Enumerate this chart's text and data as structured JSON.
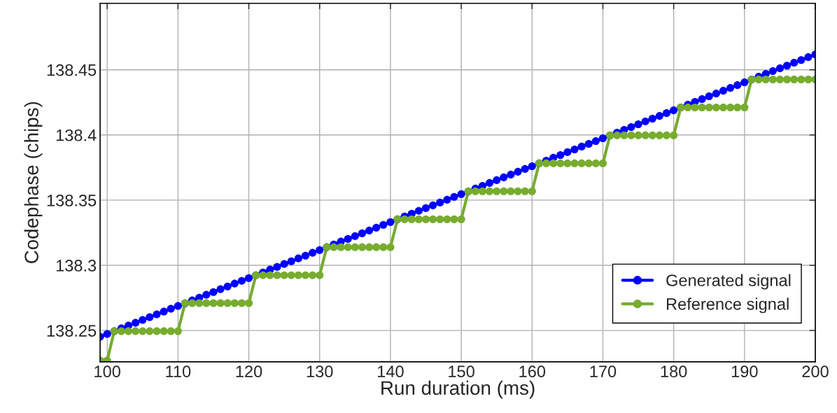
{
  "chart_data": {
    "type": "line",
    "xlabel": "Run duration (ms)",
    "ylabel": "Codephase (chips)",
    "x": [
      99,
      100,
      101,
      102,
      103,
      104,
      105,
      106,
      107,
      108,
      109,
      110,
      111,
      112,
      113,
      114,
      115,
      116,
      117,
      118,
      119,
      120,
      121,
      122,
      123,
      124,
      125,
      126,
      127,
      128,
      129,
      130,
      131,
      132,
      133,
      134,
      135,
      136,
      137,
      138,
      139,
      140,
      141,
      142,
      143,
      144,
      145,
      146,
      147,
      148,
      149,
      150,
      151,
      152,
      153,
      154,
      155,
      156,
      157,
      158,
      159,
      160,
      161,
      162,
      163,
      164,
      165,
      166,
      167,
      168,
      169,
      170,
      171,
      172,
      173,
      174,
      175,
      176,
      177,
      178,
      179,
      180,
      181,
      182,
      183,
      184,
      185,
      186,
      187,
      188,
      189,
      190,
      191,
      192,
      193,
      194,
      195,
      196,
      197,
      198,
      199,
      200
    ],
    "series": [
      {
        "name": "Generated signal",
        "color": "#0000ff",
        "values": [
          138.2452,
          138.2473,
          138.2495,
          138.2516,
          138.2538,
          138.2559,
          138.2581,
          138.2602,
          138.2624,
          138.2645,
          138.2667,
          138.2688,
          138.2709,
          138.2731,
          138.2752,
          138.2774,
          138.2795,
          138.2817,
          138.2838,
          138.286,
          138.2881,
          138.2902,
          138.2924,
          138.2945,
          138.2967,
          138.2988,
          138.301,
          138.3031,
          138.3053,
          138.3074,
          138.3096,
          138.3117,
          138.3139,
          138.316,
          138.3182,
          138.3203,
          138.3224,
          138.3246,
          138.3267,
          138.3289,
          138.331,
          138.3332,
          138.3353,
          138.3375,
          138.3396,
          138.3418,
          138.3439,
          138.346,
          138.3482,
          138.3503,
          138.3525,
          138.3546,
          138.3567,
          138.3589,
          138.361,
          138.3632,
          138.3653,
          138.3675,
          138.3696,
          138.3718,
          138.3739,
          138.376,
          138.3782,
          138.3803,
          138.3825,
          138.3846,
          138.3868,
          138.3889,
          138.3911,
          138.3932,
          138.3953,
          138.3975,
          138.3996,
          138.4018,
          138.4039,
          138.4061,
          138.4082,
          138.4104,
          138.4125,
          138.4146,
          138.4168,
          138.4189,
          138.4211,
          138.4232,
          138.4254,
          138.4275,
          138.4297,
          138.4318,
          138.4339,
          138.4361,
          138.4382,
          138.4404,
          138.4425,
          138.4447,
          138.4468,
          138.449,
          138.4511,
          138.4532,
          138.4554,
          138.4575,
          138.4597,
          138.4618
        ]
      },
      {
        "name": "Reference signal",
        "color": "#77ac30",
        "values": [
          138.227,
          138.227,
          138.2495,
          138.2495,
          138.2495,
          138.2495,
          138.2495,
          138.2495,
          138.2495,
          138.2495,
          138.2495,
          138.2495,
          138.271,
          138.271,
          138.271,
          138.271,
          138.271,
          138.271,
          138.271,
          138.271,
          138.271,
          138.271,
          138.2924,
          138.2924,
          138.2924,
          138.2924,
          138.2924,
          138.2924,
          138.2924,
          138.2924,
          138.2924,
          138.2924,
          138.3139,
          138.3139,
          138.3139,
          138.3139,
          138.3139,
          138.3139,
          138.3139,
          138.3139,
          138.3139,
          138.3139,
          138.3353,
          138.3353,
          138.3353,
          138.3353,
          138.3353,
          138.3353,
          138.3353,
          138.3353,
          138.3353,
          138.3353,
          138.3568,
          138.3568,
          138.3568,
          138.3568,
          138.3568,
          138.3568,
          138.3568,
          138.3568,
          138.3568,
          138.3568,
          138.3782,
          138.3782,
          138.3782,
          138.3782,
          138.3782,
          138.3782,
          138.3782,
          138.3782,
          138.3782,
          138.3782,
          138.3997,
          138.3997,
          138.3997,
          138.3997,
          138.3997,
          138.3997,
          138.3997,
          138.3997,
          138.3997,
          138.3997,
          138.4211,
          138.4211,
          138.4211,
          138.4211,
          138.4211,
          138.4211,
          138.4211,
          138.4211,
          138.4211,
          138.4211,
          138.4426,
          138.4426,
          138.4426,
          138.4426,
          138.4426,
          138.4426,
          138.4426,
          138.4426,
          138.4426,
          138.4426
        ]
      }
    ],
    "xlim": [
      99,
      200
    ],
    "xticks": [
      100,
      110,
      120,
      130,
      140,
      150,
      160,
      170,
      180,
      190,
      200
    ],
    "ylim": [
      138.226,
      138.501
    ],
    "yticks": [
      138.25,
      138.3,
      138.35,
      138.4,
      138.45
    ],
    "grid": true,
    "legend": "bottom right",
    "marker": "circle",
    "line_style": "solid"
  }
}
